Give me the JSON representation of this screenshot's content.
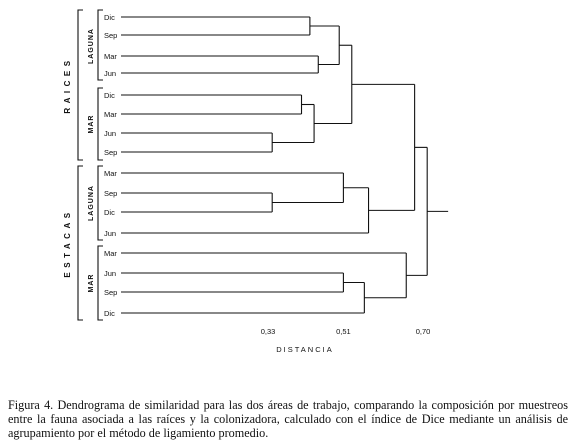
{
  "chart_data": {
    "type": "dendrogram",
    "leaves": [
      {
        "id": "RL-Dic",
        "group": "Raíces",
        "subgroup": "Laguna",
        "label": "Dic"
      },
      {
        "id": "RL-Sep",
        "group": "Raíces",
        "subgroup": "Laguna",
        "label": "Sep"
      },
      {
        "id": "RL-Mar",
        "group": "Raíces",
        "subgroup": "Laguna",
        "label": "Mar"
      },
      {
        "id": "RL-Jun",
        "group": "Raíces",
        "subgroup": "Laguna",
        "label": "Jun"
      },
      {
        "id": "RM-Dic",
        "group": "Raíces",
        "subgroup": "Mar",
        "label": "Dic"
      },
      {
        "id": "RM-Mar",
        "group": "Raíces",
        "subgroup": "Mar",
        "label": "Mar"
      },
      {
        "id": "RM-Jun",
        "group": "Raíces",
        "subgroup": "Mar",
        "label": "Jun"
      },
      {
        "id": "RM-Sep",
        "group": "Raíces",
        "subgroup": "Mar",
        "label": "Sep"
      },
      {
        "id": "EL-Mar",
        "group": "Estacas",
        "subgroup": "Laguna",
        "label": "Mar"
      },
      {
        "id": "EL-Sep",
        "group": "Estacas",
        "subgroup": "Laguna",
        "label": "Sep"
      },
      {
        "id": "EL-Dic",
        "group": "Estacas",
        "subgroup": "Laguna",
        "label": "Dic"
      },
      {
        "id": "EL-Jun",
        "group": "Estacas",
        "subgroup": "Laguna",
        "label": "Jun"
      },
      {
        "id": "EM-Mar",
        "group": "Estacas",
        "subgroup": "Mar",
        "label": "Mar"
      },
      {
        "id": "EM-Jun",
        "group": "Estacas",
        "subgroup": "Mar",
        "label": "Jun"
      },
      {
        "id": "EM-Sep",
        "group": "Estacas",
        "subgroup": "Mar",
        "label": "Sep"
      },
      {
        "id": "EM-Dic",
        "group": "Estacas",
        "subgroup": "Mar",
        "label": "Dic"
      }
    ],
    "merges": [
      {
        "id": "n1",
        "children": [
          "RL-Dic",
          "RL-Sep"
        ],
        "height": 0.43
      },
      {
        "id": "n2",
        "children": [
          "RL-Mar",
          "RL-Jun"
        ],
        "height": 0.45
      },
      {
        "id": "n3",
        "children": [
          "n1",
          "n2"
        ],
        "height": 0.5
      },
      {
        "id": "n4",
        "children": [
          "RM-Dic",
          "RM-Mar"
        ],
        "height": 0.41
      },
      {
        "id": "n5",
        "children": [
          "RM-Jun",
          "RM-Sep"
        ],
        "height": 0.34
      },
      {
        "id": "n6",
        "children": [
          "n4",
          "n5"
        ],
        "height": 0.44
      },
      {
        "id": "n7",
        "children": [
          "n3",
          "n6"
        ],
        "height": 0.53
      },
      {
        "id": "n8",
        "children": [
          "EL-Sep",
          "EL-Dic"
        ],
        "height": 0.34
      },
      {
        "id": "n9",
        "children": [
          "EL-Mar",
          "n8"
        ],
        "height": 0.51
      },
      {
        "id": "n10",
        "children": [
          "n9",
          "EL-Jun"
        ],
        "height": 0.57
      },
      {
        "id": "n11",
        "children": [
          "EM-Jun",
          "EM-Sep"
        ],
        "height": 0.51
      },
      {
        "id": "n12",
        "children": [
          "n11",
          "EM-Dic"
        ],
        "height": 0.56
      },
      {
        "id": "n13",
        "children": [
          "EM-Mar",
          "n12"
        ],
        "height": 0.66
      },
      {
        "id": "n14",
        "children": [
          "n7",
          "n10"
        ],
        "height": 0.68
      },
      {
        "id": "n15",
        "children": [
          "n14",
          "n13"
        ],
        "height": 0.71
      }
    ],
    "root_height": 0.76,
    "xaxis": {
      "label": "DISTANCIA",
      "ticks": [
        "0,33",
        "0,51",
        "0,70"
      ],
      "tick_values": [
        0.33,
        0.51,
        0.7
      ]
    },
    "groups": [
      {
        "label": "RAICES",
        "subgroups": [
          "LAGUNA",
          "MAR"
        ]
      },
      {
        "label": "ESTACAS",
        "subgroups": [
          "LAGUNA",
          "MAR"
        ]
      }
    ]
  },
  "caption": "Figura 4.  Dendrograma de similaridad para las dos áreas de trabajo, comparando la composición por muestreos entre la fauna asociada a las raíces y la colonizadora, calculado con el índice de Dice mediante un análisis de agrupamiento por el método de ligamiento promedio."
}
